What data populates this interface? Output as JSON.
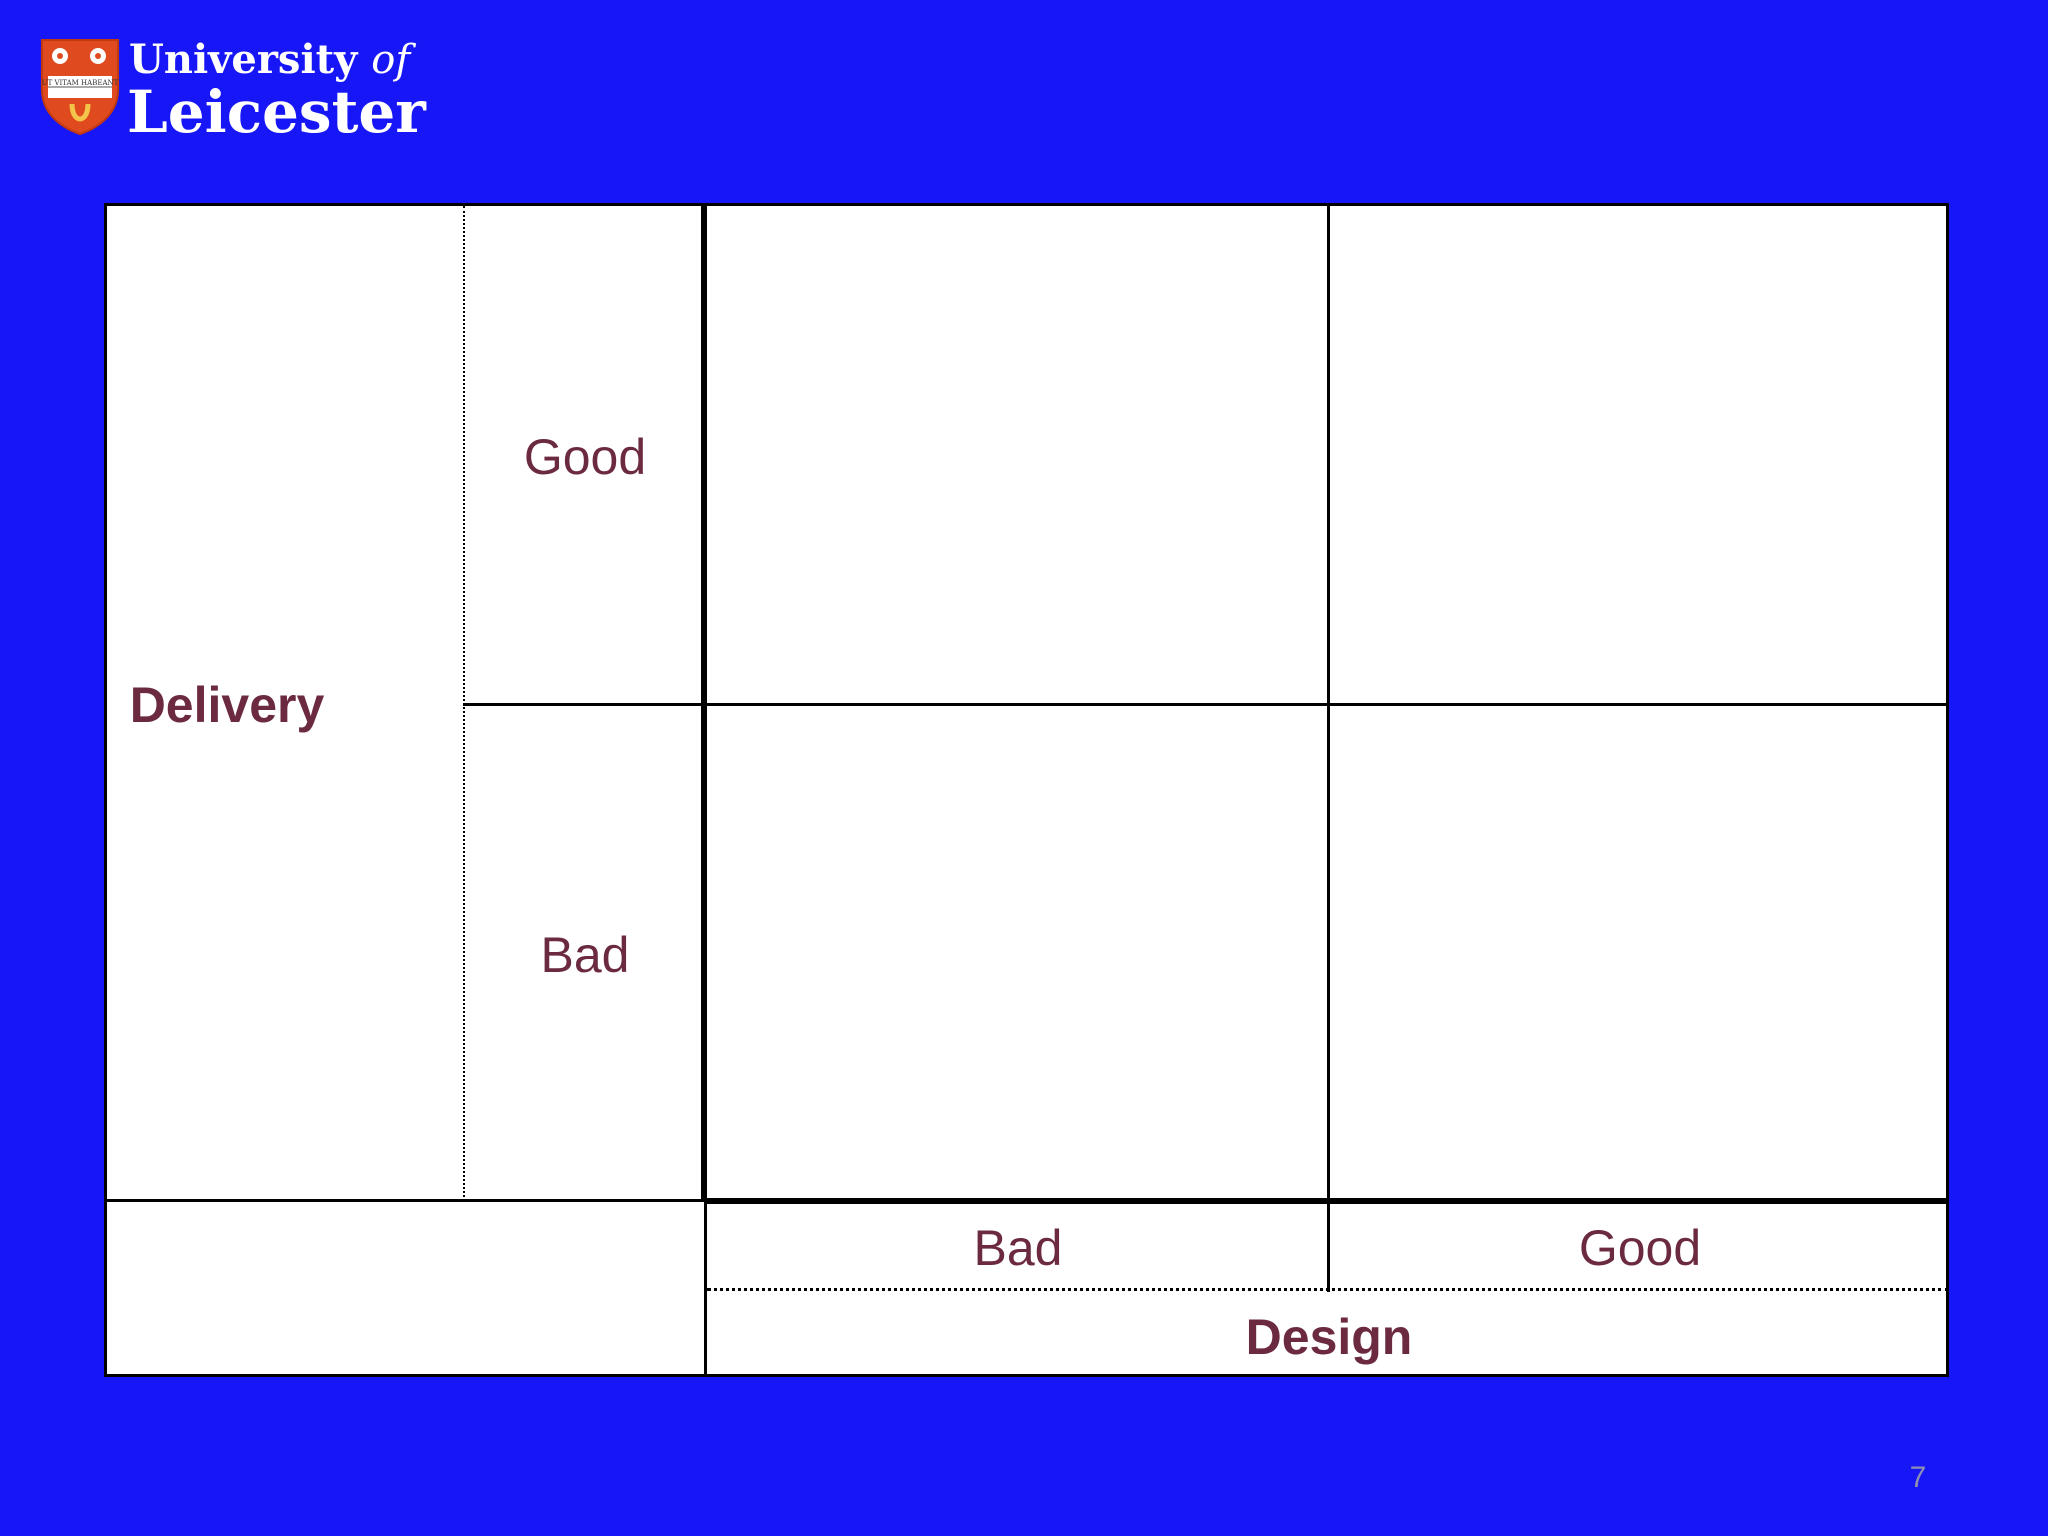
{
  "branding": {
    "university_line": "University",
    "of_text": "of",
    "city_line": "Leicester",
    "shield_motto": "UT VITAM HABEANT",
    "shield_color": "#e04a1f"
  },
  "matrix": {
    "vertical_axis_title": "Delivery",
    "vertical_levels": [
      "Good",
      "Bad"
    ],
    "horizontal_axis_title": "Design",
    "horizontal_levels": [
      "Bad",
      "Good"
    ],
    "label_color": "#6b2a3f",
    "background_color": "#1616f7"
  },
  "footer": {
    "page_number": "7"
  }
}
